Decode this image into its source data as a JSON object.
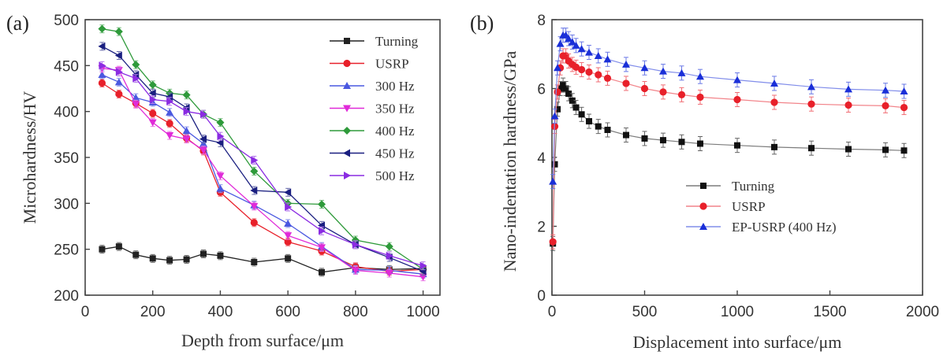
{
  "chart_data": [
    {
      "panel": "(a)",
      "type": "line",
      "xlabel": "Depth from surface/μm",
      "ylabel": "Microhardness/HV",
      "xlim": [
        0,
        1050
      ],
      "ylim": [
        200,
        500
      ],
      "xticks": [
        "0",
        "200",
        "400",
        "600",
        "800",
        "1000"
      ],
      "yticks": [
        "200",
        "250",
        "300",
        "350",
        "400",
        "450",
        "500"
      ],
      "legend_position": "top-right",
      "x": [
        50,
        100,
        150,
        200,
        250,
        300,
        350,
        400,
        500,
        600,
        700,
        800,
        900,
        1000
      ],
      "series": [
        {
          "name": "Turning",
          "color": "#222222",
          "marker": "square",
          "values": [
            250,
            253,
            244,
            240,
            238,
            239,
            245,
            243,
            236,
            240,
            225,
            230,
            228,
            229
          ]
        },
        {
          "name": "USRP",
          "color": "#e8202a",
          "marker": "circle",
          "values": [
            431,
            419,
            409,
            398,
            387,
            371,
            357,
            312,
            279,
            258,
            248,
            231,
            226,
            228
          ]
        },
        {
          "name": "300 Hz",
          "color": "#4a58e0",
          "marker": "triangle-up",
          "values": [
            440,
            432,
            415,
            410,
            399,
            379,
            365,
            316,
            298,
            278,
            253,
            228,
            227,
            223
          ]
        },
        {
          "name": "350 Hz",
          "color": "#e02ad8",
          "marker": "triangle-down",
          "values": [
            447,
            445,
            408,
            388,
            374,
            370,
            358,
            330,
            297,
            265,
            252,
            227,
            224,
            220
          ]
        },
        {
          "name": "400 Hz",
          "color": "#2e9a3a",
          "marker": "diamond",
          "values": [
            490,
            487,
            451,
            429,
            420,
            418,
            397,
            388,
            335,
            300,
            299,
            260,
            253,
            228
          ]
        },
        {
          "name": "450 Hz",
          "color": "#1a1f80",
          "marker": "triangle-left",
          "values": [
            471,
            461,
            440,
            420,
            416,
            404,
            370,
            366,
            314,
            312,
            276,
            255,
            241,
            226
          ]
        },
        {
          "name": "500 Hz",
          "color": "#8a2be2",
          "marker": "triangle-right",
          "values": [
            450,
            443,
            436,
            413,
            411,
            400,
            397,
            373,
            347,
            296,
            270,
            255,
            243,
            232
          ]
        }
      ]
    },
    {
      "panel": "(b)",
      "type": "line",
      "xlabel": "Displacement into surface/μm",
      "ylabel": "Nano-indentation hardness/GPa",
      "xlim": [
        0,
        2000
      ],
      "ylim": [
        0,
        8
      ],
      "xticks": [
        "0",
        "500",
        "1000",
        "1500",
        "2000"
      ],
      "yticks": [
        "0",
        "2",
        "4",
        "6",
        "8"
      ],
      "legend_position": "bottom-center",
      "series": [
        {
          "name": "Turning",
          "color": "#111111",
          "marker": "square",
          "x": [
            5,
            15,
            30,
            45,
            60,
            75,
            90,
            110,
            130,
            160,
            200,
            250,
            300,
            400,
            500,
            600,
            700,
            800,
            1000,
            1200,
            1400,
            1600,
            1800,
            1900
          ],
          "values": [
            1.5,
            3.8,
            5.4,
            6.0,
            6.1,
            6.0,
            5.85,
            5.65,
            5.45,
            5.25,
            5.05,
            4.9,
            4.8,
            4.65,
            4.55,
            4.5,
            4.45,
            4.4,
            4.35,
            4.3,
            4.27,
            4.24,
            4.22,
            4.2
          ]
        },
        {
          "name": "USRP",
          "color": "#e8202a",
          "marker": "circle",
          "x": [
            5,
            15,
            30,
            45,
            60,
            75,
            90,
            110,
            130,
            160,
            200,
            250,
            300,
            400,
            500,
            600,
            700,
            800,
            1000,
            1200,
            1400,
            1600,
            1800,
            1900
          ],
          "values": [
            1.55,
            4.9,
            5.9,
            6.6,
            6.95,
            6.95,
            6.8,
            6.7,
            6.62,
            6.55,
            6.48,
            6.4,
            6.3,
            6.15,
            6.0,
            5.9,
            5.82,
            5.75,
            5.68,
            5.6,
            5.55,
            5.52,
            5.5,
            5.45
          ]
        },
        {
          "name": "EP-USRP (400 Hz)",
          "color": "#1a2fd8",
          "marker": "triangle-up",
          "x": [
            5,
            15,
            30,
            45,
            60,
            75,
            90,
            110,
            130,
            160,
            200,
            250,
            300,
            400,
            500,
            600,
            700,
            800,
            1000,
            1200,
            1400,
            1600,
            1800,
            1900
          ],
          "values": [
            3.3,
            5.2,
            6.6,
            7.3,
            7.55,
            7.55,
            7.45,
            7.35,
            7.25,
            7.15,
            7.05,
            6.95,
            6.85,
            6.7,
            6.6,
            6.5,
            6.45,
            6.35,
            6.25,
            6.15,
            6.05,
            5.98,
            5.95,
            5.92
          ]
        }
      ]
    }
  ]
}
